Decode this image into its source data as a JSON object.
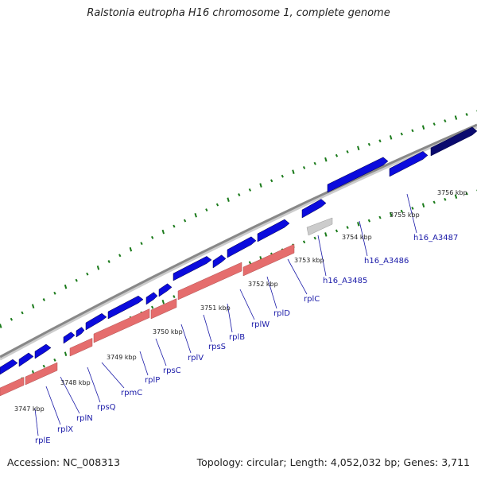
{
  "title": "Ralstonia eutropha H16 chromosome 1, complete genome",
  "footer": {
    "accession": "Accession: NC_008313",
    "summary": "Topology: circular; Length: 4,052,032 bp; Genes: 3,711"
  },
  "colors": {
    "gene_fwd": "#0b0bdd",
    "gene_fwd_dark": "#0a0a6e",
    "gene_rev": "#e56d6d",
    "gene_rev_light": "#f2b3b3",
    "backbone": "#888888",
    "gc_tick": "#1a7a1a",
    "label": "#1a1aa8"
  },
  "scale_labels": [
    "3747 kbp",
    "3748 kbp",
    "3749 kbp",
    "3750 kbp",
    "3751 kbp",
    "3752 kbp",
    "3753 kbp",
    "3754 kbp",
    "3755 kbp",
    "3756 kbp"
  ],
  "gene_labels": [
    "rplE",
    "rplX",
    "rplN",
    "rpsQ",
    "rpmC",
    "rplP",
    "rpsC",
    "rplV",
    "rpsS",
    "rplB",
    "rplW",
    "rplD",
    "rplC",
    "h16_A3485",
    "h16_A3486",
    "h16_A3487"
  ]
}
